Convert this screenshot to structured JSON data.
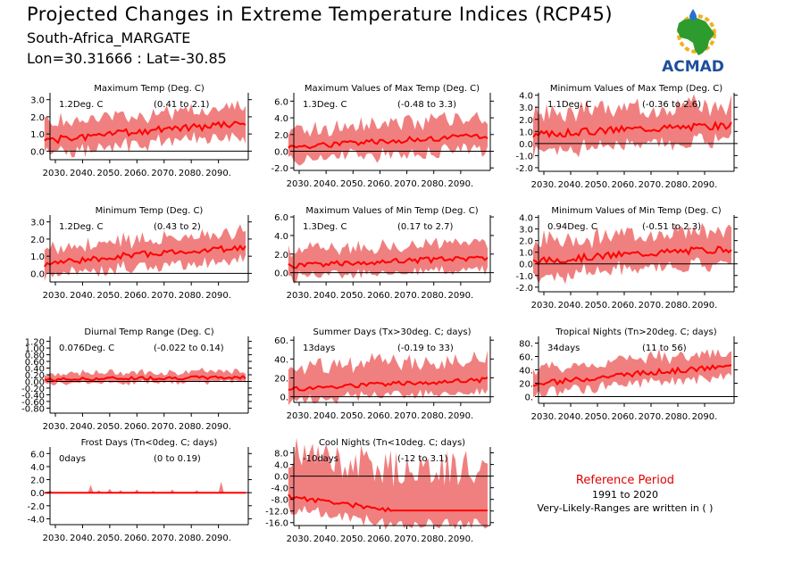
{
  "header": {
    "title": "Projected Changes in Extreme Temperature Indices (RCP45)",
    "location": "South-Africa_MARGATE",
    "coords": "Lon=30.31666 : Lat=-30.85"
  },
  "logo": {
    "text": "ACMAD",
    "icon": "africa-map-icon",
    "colors": {
      "land": "#2e9b2e",
      "text": "#1f4e9c",
      "sun": "#f2b01e",
      "drop": "#2a6fc9"
    }
  },
  "reference": {
    "title": "Reference Period",
    "years": "1991 to 2020",
    "note": "Very-Likely-Ranges are written in ( )"
  },
  "colors": {
    "band": "#f08080",
    "line": "#ff0000",
    "zero": "#000000"
  },
  "chart_data": [
    {
      "type": "area",
      "title": "Maximum Temp (Deg. C)",
      "value": "1.2Deg. C",
      "range": "(0.41 to 2.1)",
      "x_ticks": [
        "2030.",
        "2040.",
        "2050.",
        "2060.",
        "2070.",
        "2080.",
        "2090."
      ],
      "y_ticks": [
        "0.0",
        "1.0",
        "2.0",
        "3.0"
      ],
      "xlim": [
        2030,
        2099
      ],
      "ylim": [
        -0.5,
        3.4
      ],
      "x_range": [
        2026,
        2100
      ],
      "mean_trend": [
        [
          2026,
          0.6
        ],
        [
          2060,
          1.15
        ],
        [
          2100,
          1.6
        ]
      ],
      "band": [
        0.75,
        0.95
      ],
      "noise": 0.2,
      "seed": 1
    },
    {
      "type": "area",
      "title": "Maximum Values of Max Temp (Deg. C)",
      "value": "1.3Deg. C",
      "range": "(-0.48 to 3.3)",
      "x_ticks": [
        "2030.",
        "2040.",
        "2050.",
        "2060.",
        "2070.",
        "2080.",
        "2090."
      ],
      "y_ticks": [
        "-2.0",
        "0.0",
        "2.0",
        "4.0",
        "6.0"
      ],
      "xlim": [
        2030,
        2099
      ],
      "ylim": [
        -2.3,
        7.0
      ],
      "x_range": [
        2026,
        2100
      ],
      "mean_trend": [
        [
          2026,
          0.5
        ],
        [
          2060,
          1.2
        ],
        [
          2100,
          1.8
        ]
      ],
      "band": [
        1.6,
        2.1
      ],
      "noise": 0.35,
      "seed": 2
    },
    {
      "type": "area",
      "title": "Minimum Values of Max Temp (Deg. C)",
      "value": "1.1Deg. C",
      "range": "(-0.36 to 2.6)",
      "x_ticks": [
        "2030.",
        "2040.",
        "2050.",
        "2060.",
        "2070.",
        "2080.",
        "2090."
      ],
      "y_ticks": [
        "-2.0",
        "-1.0",
        "0.0",
        "1.0",
        "2.0",
        "3.0",
        "4.0"
      ],
      "xlim": [
        2030,
        2099
      ],
      "ylim": [
        -2.3,
        4.2
      ],
      "x_range": [
        2026,
        2100
      ],
      "mean_trend": [
        [
          2026,
          0.7
        ],
        [
          2060,
          1.2
        ],
        [
          2100,
          1.5
        ]
      ],
      "band": [
        1.3,
        1.7
      ],
      "noise": 0.3,
      "seed": 3
    },
    {
      "type": "area",
      "title": "Minimum Temp (Deg. C)",
      "value": "1.2Deg. C",
      "range": "(0.43 to 2)",
      "x_ticks": [
        "2030.",
        "2040.",
        "2050.",
        "2060.",
        "2070.",
        "2080.",
        "2090."
      ],
      "y_ticks": [
        "0.0",
        "1.0",
        "2.0",
        "3.0"
      ],
      "xlim": [
        2030,
        2099
      ],
      "ylim": [
        -0.5,
        3.4
      ],
      "x_range": [
        2026,
        2100
      ],
      "mean_trend": [
        [
          2026,
          0.55
        ],
        [
          2060,
          1.1
        ],
        [
          2100,
          1.5
        ]
      ],
      "band": [
        0.7,
        0.9
      ],
      "noise": 0.18,
      "seed": 4
    },
    {
      "type": "area",
      "title": "Maximum Values of Min Temp (Deg. C)",
      "value": "1.3Deg. C",
      "range": "(0.17 to 2.7)",
      "x_ticks": [
        "2030.",
        "2040.",
        "2050.",
        "2060.",
        "2070.",
        "2080.",
        "2090."
      ],
      "y_ticks": [
        "0.0",
        "2.0",
        "4.0",
        "6.0"
      ],
      "xlim": [
        2030,
        2099
      ],
      "ylim": [
        -1.0,
        6.2
      ],
      "x_range": [
        2026,
        2100
      ],
      "mean_trend": [
        [
          2026,
          0.7
        ],
        [
          2060,
          1.2
        ],
        [
          2100,
          1.6
        ]
      ],
      "band": [
        1.2,
        1.6
      ],
      "noise": 0.3,
      "seed": 5
    },
    {
      "type": "area",
      "title": "Minimum Values of Min Temp (Deg. C)",
      "value": "0.94Deg. C",
      "range": "(-0.51 to 2.3)",
      "x_ticks": [
        "2030.",
        "2040.",
        "2050.",
        "2060.",
        "2070.",
        "2080.",
        "2090."
      ],
      "y_ticks": [
        "-2.0",
        "-1.0",
        "0.0",
        "1.0",
        "2.0",
        "3.0",
        "4.0"
      ],
      "xlim": [
        2030,
        2099
      ],
      "ylim": [
        -2.4,
        4.2
      ],
      "x_range": [
        2026,
        2100
      ],
      "mean_trend": [
        [
          2026,
          0.2
        ],
        [
          2060,
          0.8
        ],
        [
          2100,
          1.3
        ]
      ],
      "band": [
        1.3,
        1.7
      ],
      "noise": 0.3,
      "seed": 6
    },
    {
      "type": "area",
      "title": "Diurnal Temp Range (Deg. C)",
      "value": "0.076Deg. C",
      "range": "(-0.022 to 0.14)",
      "x_ticks": [
        "2030.",
        "2040.",
        "2050.",
        "2060.",
        "2070.",
        "2080.",
        "2090."
      ],
      "y_ticks": [
        "-0.80",
        "-0.60",
        "-0.40",
        "-0.20",
        "0.00",
        "0.20",
        "0.40",
        "0.60",
        "0.80",
        "1.00",
        "1.20"
      ],
      "xlim": [
        2030,
        2099
      ],
      "ylim": [
        -0.95,
        1.35
      ],
      "x_range": [
        2026,
        2100
      ],
      "mean_trend": [
        [
          2026,
          0.05
        ],
        [
          2060,
          0.1
        ],
        [
          2100,
          0.12
        ]
      ],
      "band": [
        0.12,
        0.18
      ],
      "noise": 0.05,
      "seed": 7
    },
    {
      "type": "area",
      "title": "Summer Days (Tx>30deg. C; days)",
      "value": "13days",
      "range": "(-0.19 to 33)",
      "x_ticks": [
        "2030.",
        "2040.",
        "2050.",
        "2060.",
        "2070.",
        "2080.",
        "2090."
      ],
      "y_ticks": [
        "0.",
        "20.",
        "40.",
        "60."
      ],
      "xlim": [
        2030,
        2099
      ],
      "ylim": [
        -6,
        64
      ],
      "x_range": [
        2026,
        2100
      ],
      "mean_trend": [
        [
          2026,
          8
        ],
        [
          2060,
          13
        ],
        [
          2100,
          18
        ]
      ],
      "band": [
        12,
        22
      ],
      "noise": 2.5,
      "seed": 8
    },
    {
      "type": "area",
      "title": "Tropical Nights (Tn>20deg. C; days)",
      "value": "34days",
      "range": "(11 to 56)",
      "x_ticks": [
        "2030.",
        "2040.",
        "2050.",
        "2060.",
        "2070.",
        "2080.",
        "2090."
      ],
      "y_ticks": [
        "0.",
        "20.",
        "40.",
        "60.",
        "80."
      ],
      "xlim": [
        2030,
        2099
      ],
      "ylim": [
        -10,
        90
      ],
      "x_range": [
        2026,
        2100
      ],
      "mean_trend": [
        [
          2026,
          18
        ],
        [
          2060,
          33
        ],
        [
          2100,
          45
        ]
      ],
      "band": [
        14,
        22
      ],
      "noise": 4,
      "seed": 9
    },
    {
      "type": "area",
      "title": "Frost Days (Tn<0deg. C; days)",
      "value": "0days",
      "range": "(0 to 0.19)",
      "x_ticks": [
        "2030.",
        "2040.",
        "2050.",
        "2060.",
        "2070.",
        "2080.",
        "2090."
      ],
      "y_ticks": [
        "-4.0",
        "-2.0",
        "0.0",
        "2.0",
        "4.0",
        "6.0"
      ],
      "xlim": [
        2030,
        2099
      ],
      "ylim": [
        -4.9,
        7.0
      ],
      "x_range": [
        2026,
        2100
      ],
      "mean_trend": [
        [
          2026,
          0
        ],
        [
          2100,
          0
        ]
      ],
      "band": [
        0,
        0
      ],
      "noise": 0,
      "seed": 10,
      "spikes": [
        [
          2028,
          0.4
        ],
        [
          2043,
          1.2
        ],
        [
          2046,
          0.4
        ],
        [
          2050,
          0.6
        ],
        [
          2054,
          0.4
        ],
        [
          2060,
          0.5
        ],
        [
          2066,
          0.3
        ],
        [
          2073,
          0.5
        ],
        [
          2082,
          0.4
        ],
        [
          2091,
          1.7
        ]
      ]
    },
    {
      "type": "area",
      "title": "Cool Nights (Tn<10deg. C; days)",
      "value": "-10days",
      "range": "(-12 to 3.1)",
      "x_ticks": [
        "2030.",
        "2040.",
        "2050.",
        "2060.",
        "2070.",
        "2080.",
        "2090."
      ],
      "y_ticks": [
        "-16.0",
        "-12.0",
        "-8.0",
        "-4.0",
        "0.0",
        "4.0",
        "8.0"
      ],
      "xlim": [
        2030,
        2099
      ],
      "ylim": [
        -17,
        10
      ],
      "x_range": [
        2026,
        2100
      ],
      "mean_trend": [
        [
          2026,
          -7
        ],
        [
          2064,
          -11.7
        ],
        [
          2065,
          -11.8
        ],
        [
          2100,
          -11.8
        ]
      ],
      "band": [
        4.5,
        14.5
      ],
      "noise": 0.8,
      "seed": 11,
      "flat_after": 2065
    }
  ]
}
